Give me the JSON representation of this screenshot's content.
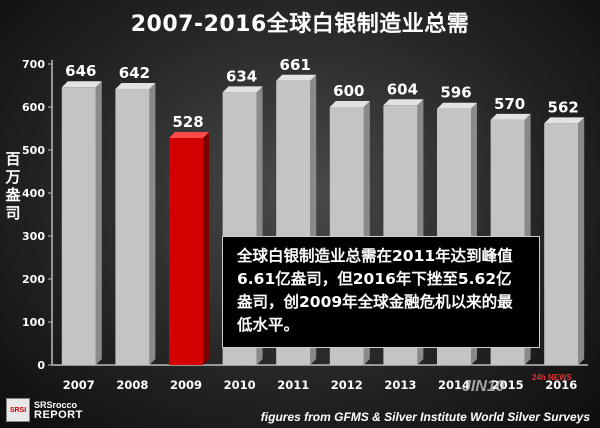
{
  "chart_data": {
    "type": "bar",
    "title": "2007-2016全球白银制造业总需",
    "ylabel": "百万盎司",
    "xlabel": "",
    "categories": [
      "2007",
      "2008",
      "2009",
      "2010",
      "2011",
      "2012",
      "2013",
      "2014",
      "2015",
      "2016"
    ],
    "values": [
      646,
      642,
      528,
      634,
      661,
      600,
      604,
      596,
      570,
      562
    ],
    "value_labels": [
      "646",
      "642",
      "528",
      "634",
      "661",
      "600",
      "604",
      "596",
      "570",
      "562"
    ],
    "highlight_category": "2009",
    "ylim": [
      0,
      700
    ],
    "yticks": [
      0,
      100,
      200,
      300,
      400,
      500,
      600,
      700
    ],
    "grid": false,
    "colors": {
      "bar": "#c4c4c4",
      "bar_side": "#8a8a8a",
      "highlight": "#d40000",
      "highlight_side": "#7a0000"
    }
  },
  "annotation": {
    "text": "全球白银制造业总需在2011年达到峰值6.61亿盎司，但2016年下挫至5.62亿盎司，创2009年全球金融危机以来的最低水平。"
  },
  "source": "figures from GFMS & Silver Institute World Silver Surveys",
  "logo": {
    "mark": "SRSI",
    "line1": "SRSrocco",
    "line2": "REPORT"
  },
  "watermark": {
    "text": "JIN10",
    "tag": "24h NEWS"
  }
}
